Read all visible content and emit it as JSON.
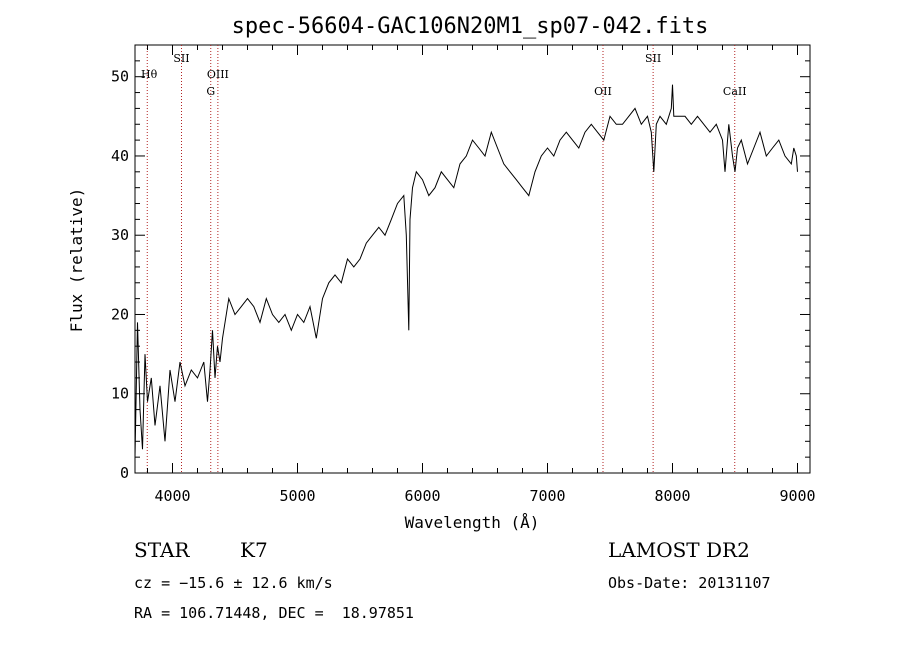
{
  "title": "spec-56604-GAC106N20M1_sp07-042.fits",
  "info": {
    "class": "STAR",
    "subclass": "K7",
    "cz": "cz = −15.6 ± 12.6 km/s",
    "coords": "RA = 106.71448, DEC =  18.97851",
    "survey": "LAMOST DR2",
    "obs_date": "Obs-Date: 20131107"
  },
  "chart_data": {
    "type": "line",
    "title": "spec-56604-GAC106N20M1_sp07-042.fits",
    "xlabel": "Wavelength (Å)",
    "ylabel": "Flux (relative)",
    "xlim": [
      3700,
      9100
    ],
    "ylim": [
      0,
      54
    ],
    "xticks": [
      4000,
      5000,
      6000,
      7000,
      8000,
      9000
    ],
    "yticks": [
      0,
      10,
      20,
      30,
      40,
      50
    ],
    "grid": false,
    "series": [
      {
        "color": "#000000",
        "x": [
          3700,
          3720,
          3740,
          3760,
          3780,
          3800,
          3830,
          3860,
          3900,
          3940,
          3980,
          4020,
          4060,
          4100,
          4150,
          4200,
          4250,
          4280,
          4300,
          4320,
          4340,
          4360,
          4380,
          4400,
          4450,
          4500,
          4550,
          4600,
          4650,
          4700,
          4750,
          4800,
          4850,
          4900,
          4950,
          5000,
          5050,
          5100,
          5150,
          5200,
          5250,
          5300,
          5350,
          5400,
          5450,
          5500,
          5550,
          5600,
          5650,
          5700,
          5750,
          5800,
          5850,
          5870,
          5890,
          5900,
          5920,
          5950,
          6000,
          6050,
          6100,
          6150,
          6200,
          6250,
          6300,
          6350,
          6400,
          6450,
          6500,
          6550,
          6600,
          6650,
          6700,
          6750,
          6800,
          6850,
          6900,
          6950,
          7000,
          7050,
          7100,
          7150,
          7200,
          7250,
          7300,
          7350,
          7400,
          7450,
          7500,
          7550,
          7600,
          7650,
          7700,
          7750,
          7800,
          7830,
          7850,
          7870,
          7900,
          7950,
          7990,
          8000,
          8010,
          8050,
          8100,
          8150,
          8200,
          8250,
          8300,
          8350,
          8400,
          8420,
          8450,
          8480,
          8500,
          8520,
          8550,
          8600,
          8650,
          8700,
          8750,
          8800,
          8850,
          8900,
          8950,
          8970,
          8990,
          9000
        ],
        "y": [
          2,
          19,
          8,
          3,
          15,
          9,
          12,
          6,
          11,
          4,
          13,
          9,
          14,
          11,
          13,
          12,
          14,
          9,
          13,
          18,
          12,
          16,
          14,
          17,
          22,
          20,
          21,
          22,
          21,
          19,
          22,
          20,
          19,
          20,
          18,
          20,
          19,
          21,
          17,
          22,
          24,
          25,
          24,
          27,
          26,
          27,
          29,
          30,
          31,
          30,
          32,
          34,
          35,
          30,
          18,
          32,
          36,
          38,
          37,
          35,
          36,
          38,
          37,
          36,
          39,
          40,
          42,
          41,
          40,
          43,
          41,
          39,
          38,
          37,
          36,
          35,
          38,
          40,
          41,
          40,
          42,
          43,
          42,
          41,
          43,
          44,
          43,
          42,
          45,
          44,
          44,
          45,
          46,
          44,
          45,
          43,
          38,
          44,
          45,
          44,
          46,
          49,
          45,
          45,
          45,
          44,
          45,
          44,
          43,
          44,
          42,
          38,
          44,
          40,
          38,
          41,
          42,
          39,
          41,
          43,
          40,
          41,
          42,
          40,
          39,
          41,
          40,
          38
        ]
      }
    ],
    "lines": [
      {
        "label": "Hθ",
        "wavelength": 3798,
        "position": "top-left"
      },
      {
        "label": "SII",
        "wavelength": 4072,
        "position": "top"
      },
      {
        "label": "G",
        "wavelength": 4306,
        "position": "lower"
      },
      {
        "label": "OIII",
        "wavelength": 4363,
        "position": "upper"
      },
      {
        "label": "OII",
        "wavelength": 7444,
        "position": "lower"
      },
      {
        "label": "SII",
        "wavelength": 7845,
        "position": "top"
      },
      {
        "label": "CaII",
        "wavelength": 8498,
        "position": "lower"
      }
    ]
  }
}
